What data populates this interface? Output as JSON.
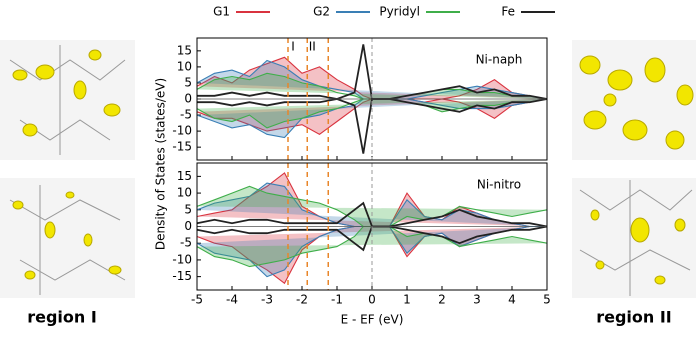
{
  "chart_data": [
    {
      "type": "area",
      "title": "Ni-naph",
      "ylabel": "Density of States (states/eV)",
      "x": [
        -5,
        -4.5,
        -4,
        -3.5,
        -3,
        -2.5,
        -2,
        -1.5,
        -1,
        -0.5,
        -0.25,
        0,
        0.5,
        1,
        1.5,
        2,
        2.5,
        3,
        3.5,
        4,
        4.5,
        5
      ],
      "xlim": [
        -5,
        5
      ],
      "xticks": [
        -5,
        -4,
        -3,
        -2,
        -1,
        0,
        1,
        2,
        3,
        4,
        5
      ],
      "ylim": [
        -19,
        19
      ],
      "yticks": [
        -15,
        -10,
        -5,
        0,
        5,
        10,
        15
      ],
      "ref_line": 0,
      "vlines": [
        {
          "value": -2.4,
          "label": "I"
        },
        {
          "value": -1.85,
          "label": "II"
        },
        {
          "value": -1.25
        }
      ],
      "series": [
        {
          "name": "G1",
          "color": "#d9333f",
          "values": [
            4,
            7,
            5,
            9,
            11,
            13,
            8,
            10,
            6,
            3,
            1,
            0,
            0,
            0,
            0,
            0,
            1,
            3,
            6,
            2,
            1,
            0
          ],
          "values_down": [
            -4,
            -6,
            -6,
            -8,
            -10,
            -9,
            -8,
            -11,
            -7,
            -3,
            -1,
            0,
            0,
            0,
            -1,
            0,
            -1,
            -3,
            -6,
            -2,
            -1,
            0
          ]
        },
        {
          "name": "G2",
          "color": "#3a7fb5",
          "values": [
            5,
            8,
            9,
            7,
            12,
            10,
            6,
            4,
            3,
            2,
            0,
            0,
            0,
            0,
            1,
            2,
            3,
            4,
            3,
            2,
            1,
            0
          ],
          "values_down": [
            -5,
            -7,
            -9,
            -8,
            -11,
            -12,
            -6,
            -5,
            -3,
            -2,
            0,
            0,
            0,
            0,
            -1,
            -2,
            -3,
            -3,
            -3,
            -2,
            -1,
            0
          ]
        },
        {
          "name": "Pyridyl",
          "color": "#3fae4a",
          "values": [
            3,
            6,
            7,
            6,
            8,
            7,
            5,
            4,
            2,
            1,
            0,
            0,
            0,
            1,
            2,
            3,
            3,
            2,
            2,
            1,
            1,
            0
          ],
          "values_down": [
            -3,
            -6,
            -7,
            -5,
            -9,
            -7,
            -6,
            -4,
            -3,
            -1,
            0,
            0,
            0,
            -1,
            -2,
            -4,
            -3,
            -2,
            -2,
            -1,
            -1,
            0
          ]
        },
        {
          "name": "Fe",
          "color": "#222222",
          "values": [
            1,
            1,
            2,
            1,
            2,
            1,
            1,
            1,
            0,
            2,
            17,
            0,
            0,
            1,
            2,
            3,
            4,
            2,
            3,
            1,
            1,
            0
          ],
          "values_down": [
            -1,
            -1,
            -2,
            -1,
            -2,
            -1,
            -1,
            -1,
            0,
            -2,
            -17,
            0,
            0,
            -1,
            -2,
            -3,
            -4,
            -2,
            -3,
            -1,
            -1,
            0
          ]
        }
      ]
    },
    {
      "type": "area",
      "title": "Ni-nitro",
      "xlabel": "E - EF (eV)",
      "x": [
        -5,
        -4.5,
        -4,
        -3.5,
        -3,
        -2.5,
        -2,
        -1.5,
        -1,
        -0.5,
        -0.25,
        0,
        0.5,
        1,
        1.5,
        2,
        2.5,
        3,
        3.5,
        4,
        4.5,
        5
      ],
      "xlim": [
        -5,
        5
      ],
      "xticks": [
        -5,
        -4,
        -3,
        -2,
        -1,
        0,
        1,
        2,
        3,
        4,
        5
      ],
      "ylim": [
        -19,
        19
      ],
      "yticks": [
        -15,
        -10,
        -5,
        0,
        5,
        10,
        15
      ],
      "ref_line": 0,
      "vlines": [
        {
          "value": -2.4
        },
        {
          "value": -1.85
        },
        {
          "value": -1.25
        }
      ],
      "series": [
        {
          "values": [
            3,
            4,
            5,
            9,
            12,
            16,
            6,
            3,
            1,
            0,
            0,
            0,
            0,
            10,
            3,
            2,
            6,
            4,
            2,
            1,
            0,
            0
          ],
          "values_down": [
            -3,
            -5,
            -6,
            -10,
            -13,
            -17,
            -7,
            -3,
            -1,
            0,
            0,
            0,
            0,
            -9,
            -3,
            -2,
            -6,
            -4,
            -2,
            -1,
            0,
            0
          ]
        },
        {
          "values": [
            5,
            7,
            8,
            9,
            13,
            12,
            5,
            3,
            1,
            0,
            0,
            0,
            0,
            8,
            3,
            2,
            5,
            4,
            2,
            1,
            0,
            0
          ],
          "values_down": [
            -5,
            -8,
            -9,
            -10,
            -15,
            -13,
            -6,
            -3,
            -1,
            0,
            0,
            0,
            0,
            -8,
            -3,
            -2,
            -6,
            -4,
            -2,
            -1,
            0,
            0
          ]
        },
        {
          "values": [
            6,
            8,
            10,
            12,
            10,
            9,
            8,
            7,
            5,
            2,
            0,
            0,
            0,
            3,
            2,
            3,
            6,
            5,
            4,
            3,
            4,
            5
          ],
          "values_down": [
            -6,
            -9,
            -10,
            -12,
            -11,
            -10,
            -8,
            -7,
            -6,
            -3,
            0,
            0,
            0,
            -3,
            -2,
            -3,
            -6,
            -5,
            -4,
            -3,
            -4,
            -5
          ]
        },
        {
          "values": [
            1,
            2,
            1,
            2,
            2,
            1,
            1,
            1,
            1,
            5,
            7,
            0,
            0,
            1,
            2,
            3,
            5,
            3,
            2,
            1,
            1,
            0
          ],
          "values_down": [
            -1,
            -2,
            -1,
            -2,
            -2,
            -1,
            -1,
            -1,
            -1,
            -5,
            -7,
            0,
            0,
            -1,
            -2,
            -3,
            -5,
            -3,
            -2,
            -1,
            -1,
            0
          ]
        }
      ]
    }
  ],
  "images": {
    "left_label": "region I",
    "right_label": "region II"
  }
}
